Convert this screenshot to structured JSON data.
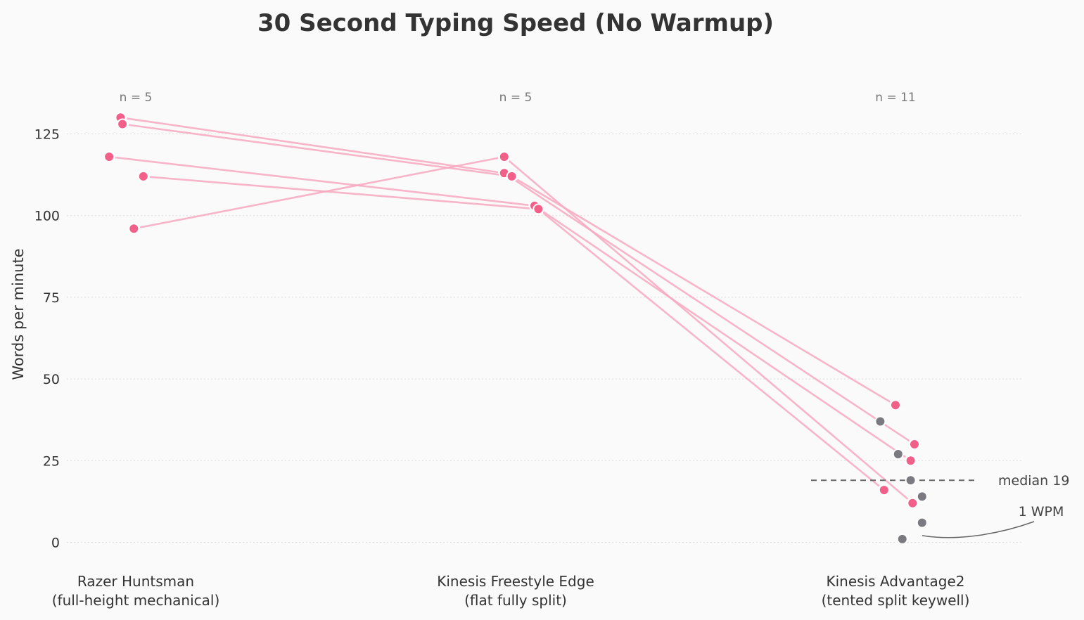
{
  "chart_data": {
    "type": "scatter",
    "title": "30 Second Typing Speed (No Warmup)",
    "ylabel": "Words per minute",
    "xlabel": "",
    "ylim": [
      -5,
      140
    ],
    "yticks": [
      0,
      25,
      50,
      75,
      100,
      125
    ],
    "grid": true,
    "categories": [
      {
        "line1": "Razer Huntsman",
        "line2": "(full-height mechanical)",
        "n_label": "n = 5"
      },
      {
        "line1": "Kinesis Freestyle Edge",
        "line2": "(flat fully split)",
        "n_label": "n = 5"
      },
      {
        "line1": "Kinesis Advantage2",
        "line2": "(tented split keywell)",
        "n_label": "n = 11"
      }
    ],
    "colors": {
      "paired": "#f2608a",
      "unpaired": "#7b7a80",
      "line": "#f7a8c0",
      "median": "#666666"
    },
    "paired_series": [
      {
        "values": [
          130,
          113,
          30
        ],
        "jitter": [
          -0.04,
          -0.03,
          0.05
        ]
      },
      {
        "values": [
          128,
          112,
          42
        ],
        "jitter": [
          -0.035,
          -0.01,
          0.0
        ]
      },
      {
        "values": [
          118,
          103,
          25
        ],
        "jitter": [
          -0.07,
          0.05,
          0.04
        ]
      },
      {
        "values": [
          112,
          102,
          16
        ],
        "jitter": [
          0.02,
          0.06,
          -0.03
        ]
      },
      {
        "values": [
          96,
          118,
          12
        ],
        "jitter": [
          -0.005,
          -0.03,
          0.045
        ]
      }
    ],
    "unpaired_points": [
      {
        "category": 2,
        "value": 37,
        "jitter": -0.04
      },
      {
        "category": 2,
        "value": 27,
        "jitter": 0.007
      },
      {
        "category": 2,
        "value": 19,
        "jitter": 0.04
      },
      {
        "category": 2,
        "value": 14,
        "jitter": 0.07
      },
      {
        "category": 2,
        "value": 6,
        "jitter": 0.07
      },
      {
        "category": 2,
        "value": 1,
        "jitter": 0.018
      }
    ],
    "median": {
      "category": 2,
      "value": 19,
      "label": "median 19"
    },
    "annotation": {
      "category": 2,
      "value": 1,
      "label": "1 WPM"
    }
  }
}
